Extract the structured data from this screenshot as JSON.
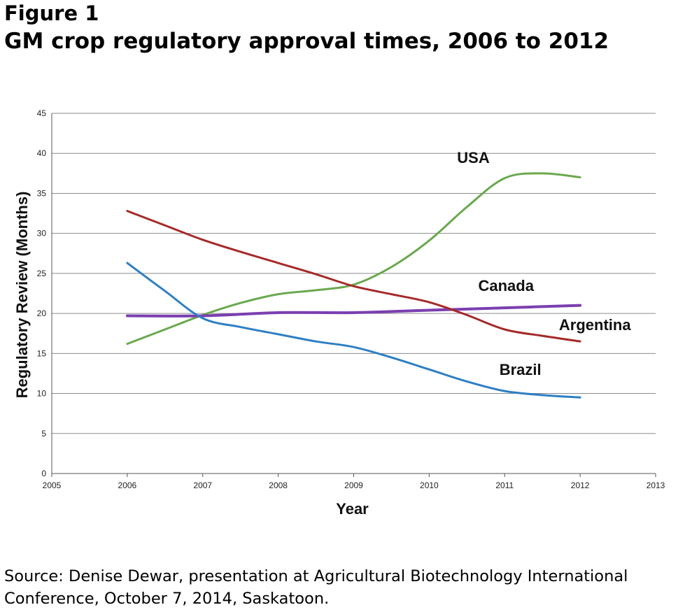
{
  "figure": {
    "label": "Figure 1",
    "title": "GM crop regulatory approval times, 2006 to 2012"
  },
  "source": "Source: Denise Dewar, presentation at Agricultural Biotechnology International Conference, October 7, 2014, Saskatoon.",
  "chart_data": {
    "type": "line",
    "title": "",
    "xlabel": "Year",
    "ylabel": "Regulatory Review (Months)",
    "xlim": [
      2005,
      2013
    ],
    "ylim": [
      0,
      45
    ],
    "x_ticks": [
      "2005",
      "2006",
      "2007",
      "2008",
      "2009",
      "2010",
      "2011",
      "2012",
      "2013"
    ],
    "y_ticks": [
      "0",
      "5",
      "10",
      "15",
      "20",
      "25",
      "30",
      "35",
      "40",
      "45"
    ],
    "grid": "horizontal",
    "legend": "none (direct labels)",
    "series": [
      {
        "name": "USA",
        "color": "#6aa84f",
        "x": [
          2006,
          2006.5,
          2007,
          2007.5,
          2008,
          2008.5,
          2009,
          2009.5,
          2010,
          2010.5,
          2011,
          2011.5,
          2012
        ],
        "values": [
          16.2,
          18.0,
          19.8,
          21.3,
          22.4,
          22.9,
          23.6,
          25.8,
          29.1,
          33.3,
          36.9,
          37.5,
          37.0
        ]
      },
      {
        "name": "Canada",
        "color": "#7b3fb0",
        "x": [
          2006,
          2007,
          2008,
          2009,
          2010,
          2011,
          2012
        ],
        "values": [
          19.7,
          19.7,
          20.1,
          20.1,
          20.4,
          20.7,
          21.0
        ]
      },
      {
        "name": "Argentina",
        "color": "#a52a2a",
        "x": [
          2006,
          2006.5,
          2007,
          2007.5,
          2008,
          2008.5,
          2009,
          2009.5,
          2010,
          2010.5,
          2011,
          2011.5,
          2012
        ],
        "values": [
          32.8,
          31.0,
          29.2,
          27.7,
          26.3,
          24.9,
          23.4,
          22.4,
          21.4,
          19.8,
          18.0,
          17.2,
          16.5
        ]
      },
      {
        "name": "Brazil",
        "color": "#2e7fc3",
        "x": [
          2006,
          2006.5,
          2007,
          2007.5,
          2008,
          2008.5,
          2009,
          2009.5,
          2010,
          2010.5,
          2011,
          2011.5,
          2012
        ],
        "values": [
          26.3,
          22.8,
          19.4,
          18.3,
          17.4,
          16.5,
          15.8,
          14.5,
          13.0,
          11.5,
          10.3,
          9.8,
          9.5
        ]
      }
    ]
  }
}
